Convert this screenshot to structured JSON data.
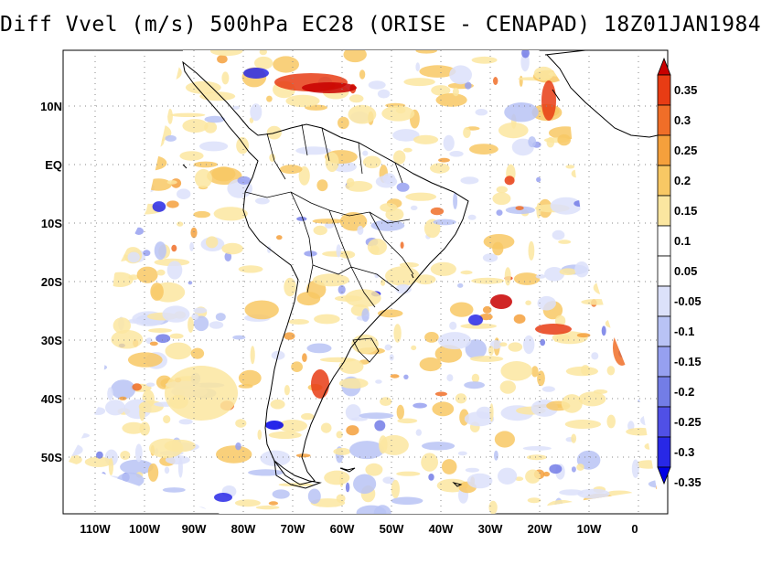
{
  "title": "Diff Vvel (m/s) 500hPa EC28 (ORISE - CENAPAD) 18Z01JAN1984",
  "map": {
    "variable": "Vvel difference",
    "units": "m/s",
    "level": "500hPa",
    "lat_labels": [
      "10N",
      "EQ",
      "10S",
      "20S",
      "30S",
      "40S",
      "50S"
    ],
    "lon_labels": [
      "110W",
      "100W",
      "90W",
      "80W",
      "70W",
      "60W",
      "50W",
      "40W",
      "30W",
      "20W",
      "10W",
      "0"
    ]
  },
  "colorbar": {
    "labels": [
      "0.35",
      "0.3",
      "0.25",
      "0.2",
      "0.15",
      "0.1",
      "0.05",
      "-0.05",
      "-0.1",
      "-0.15",
      "-0.2",
      "-0.25",
      "-0.3",
      "-0.35"
    ],
    "colors": [
      "#c80000",
      "#e83c14",
      "#f06e28",
      "#f5a03c",
      "#f8c864",
      "#fbe6a0",
      "#ffffff",
      "#ffffff",
      "#dce1fa",
      "#b9c3f5",
      "#96a0f0",
      "#737de6",
      "#5050e6",
      "#2828e6",
      "#0000e6"
    ]
  }
}
